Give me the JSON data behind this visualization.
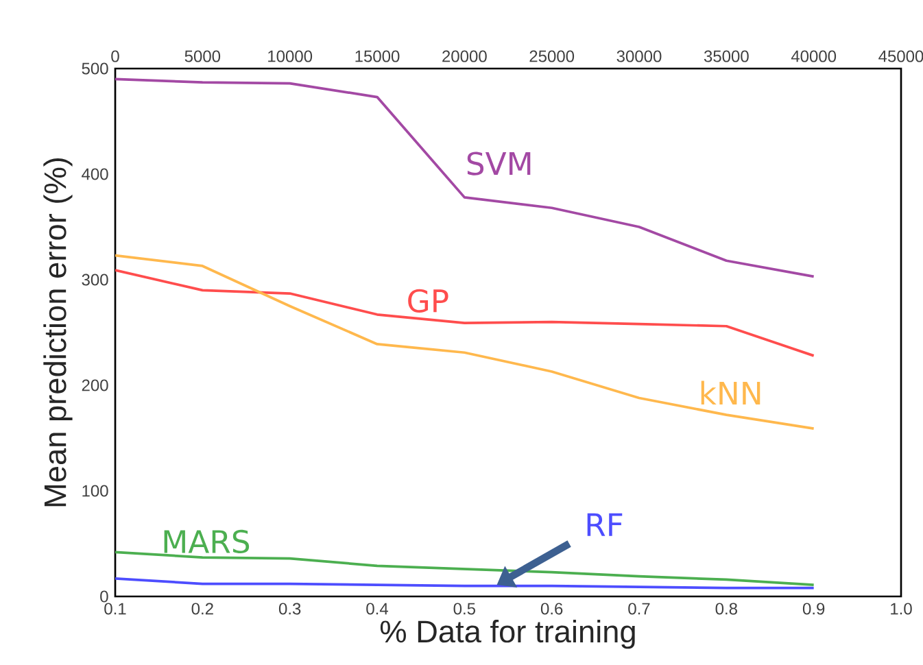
{
  "chart_data": {
    "type": "line",
    "xlabel": "% Data for training",
    "ylabel": "Mean prediction error  (%)",
    "x": [
      0.1,
      0.2,
      0.3,
      0.4,
      0.5,
      0.6,
      0.7,
      0.8,
      0.9
    ],
    "series": [
      {
        "name": "SVM",
        "color": "#a349a4",
        "values": [
          490,
          487,
          486,
          473,
          378,
          368,
          350,
          318,
          303
        ]
      },
      {
        "name": "GP",
        "color": "#ff4d4d",
        "values": [
          309,
          290,
          287,
          267,
          259,
          260,
          258,
          256,
          228
        ]
      },
      {
        "name": "kNN",
        "color": "#ffb84d",
        "values": [
          323,
          313,
          275,
          239,
          231,
          213,
          188,
          172,
          159
        ]
      },
      {
        "name": "MARS",
        "color": "#4caf50",
        "values": [
          42,
          37,
          36,
          29,
          26,
          23,
          19,
          16,
          11
        ]
      },
      {
        "name": "RF",
        "color": "#4d4dff",
        "values": [
          17,
          12,
          12,
          11,
          10,
          10,
          9,
          8,
          8
        ]
      }
    ],
    "xlim": [
      0.1,
      1.0
    ],
    "ylim": [
      0,
      500
    ],
    "xticks": [
      0.1,
      0.2,
      0.3,
      0.4,
      0.5,
      0.6,
      0.7,
      0.8,
      0.9,
      {
        "value": 1.0,
        "label": "1.0"
      }
    ],
    "yticks": [
      0,
      100,
      200,
      300,
      400,
      500
    ],
    "x2lim": [
      0,
      45000
    ],
    "x2ticks": [
      0,
      5000,
      10000,
      15000,
      20000,
      25000,
      30000,
      35000,
      40000,
      45000
    ],
    "grid": false,
    "legend": false,
    "marker": "none",
    "line_style": "solid"
  }
}
